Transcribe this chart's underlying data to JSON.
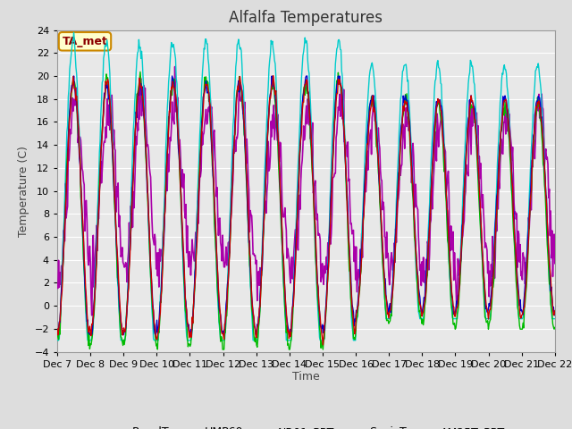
{
  "title": "Alfalfa Temperatures",
  "ylabel": "Temperature (C)",
  "xlabel": "Time",
  "ylim": [
    -4,
    24
  ],
  "yticks": [
    -4,
    -2,
    0,
    2,
    4,
    6,
    8,
    10,
    12,
    14,
    16,
    18,
    20,
    22,
    24
  ],
  "x_tick_labels": [
    "Dec 7",
    "Dec 8",
    "Dec 9",
    "Dec 10",
    "Dec 11",
    "Dec 12",
    "Dec 13",
    "Dec 14",
    "Dec 15",
    "Dec 16",
    "Dec 17",
    "Dec 18",
    "Dec 19",
    "Dec 20",
    "Dec 21",
    "Dec 22"
  ],
  "series": {
    "PanelT": {
      "color": "#cc0000",
      "lw": 1.0
    },
    "HMP60": {
      "color": "#0000cc",
      "lw": 1.0
    },
    "NR01_PRT": {
      "color": "#00bb00",
      "lw": 1.0
    },
    "SonicT": {
      "color": "#aa00aa",
      "lw": 1.2
    },
    "AM25T_PRT": {
      "color": "#00cccc",
      "lw": 1.0
    }
  },
  "ta_met_label": "TA_met",
  "bg_color": "#dddddd",
  "plot_bg_color": "#e8e8e8",
  "title_fontsize": 12,
  "axis_label_fontsize": 9,
  "tick_fontsize": 8,
  "legend_fontsize": 9
}
